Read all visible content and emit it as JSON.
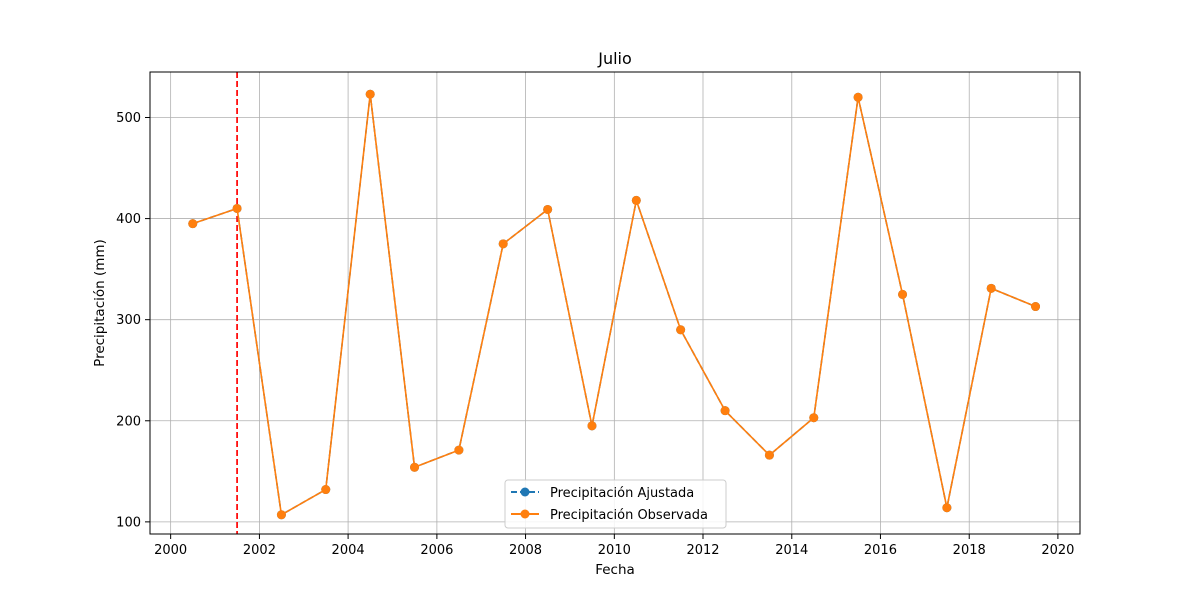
{
  "chart_data": {
    "type": "line",
    "title": "Julio",
    "xlabel": "Fecha",
    "ylabel": "Precipitación (mm)",
    "xlim": [
      "1999-07-15",
      "2020-07-01"
    ],
    "ylim": [
      88,
      545
    ],
    "x_ticks": [
      "2000",
      "2002",
      "2004",
      "2006",
      "2008",
      "2010",
      "2012",
      "2014",
      "2016",
      "2018",
      "2020"
    ],
    "y_ticks": [
      100,
      200,
      300,
      400,
      500
    ],
    "grid": true,
    "legend_position": "lower center",
    "vline": {
      "x": "2001-07-01",
      "color": "#ff0000",
      "style": "dashed"
    },
    "x": [
      "2000-07-01",
      "2001-07-01",
      "2002-07-01",
      "2003-07-01",
      "2004-07-01",
      "2005-07-01",
      "2006-07-01",
      "2007-07-01",
      "2008-07-01",
      "2009-07-01",
      "2010-07-01",
      "2011-07-01",
      "2012-07-01",
      "2013-07-01",
      "2014-07-01",
      "2015-07-01",
      "2016-07-01",
      "2017-07-01",
      "2018-07-01",
      "2019-07-01"
    ],
    "series": [
      {
        "name": "Precipitación Ajustada",
        "color": "#1f77b4",
        "linestyle": "dashed",
        "marker": "circle",
        "values": [
          395,
          410,
          107,
          132,
          523,
          154,
          171,
          375,
          409,
          195,
          418,
          290,
          210,
          166,
          203,
          520,
          325,
          114,
          331,
          313
        ]
      },
      {
        "name": "Precipitación Observada",
        "color": "#ff7f0e",
        "linestyle": "solid",
        "marker": "circle",
        "values": [
          395,
          410,
          107,
          132,
          523,
          154,
          171,
          375,
          409,
          195,
          418,
          290,
          210,
          166,
          203,
          520,
          325,
          114,
          331,
          313
        ]
      }
    ]
  }
}
